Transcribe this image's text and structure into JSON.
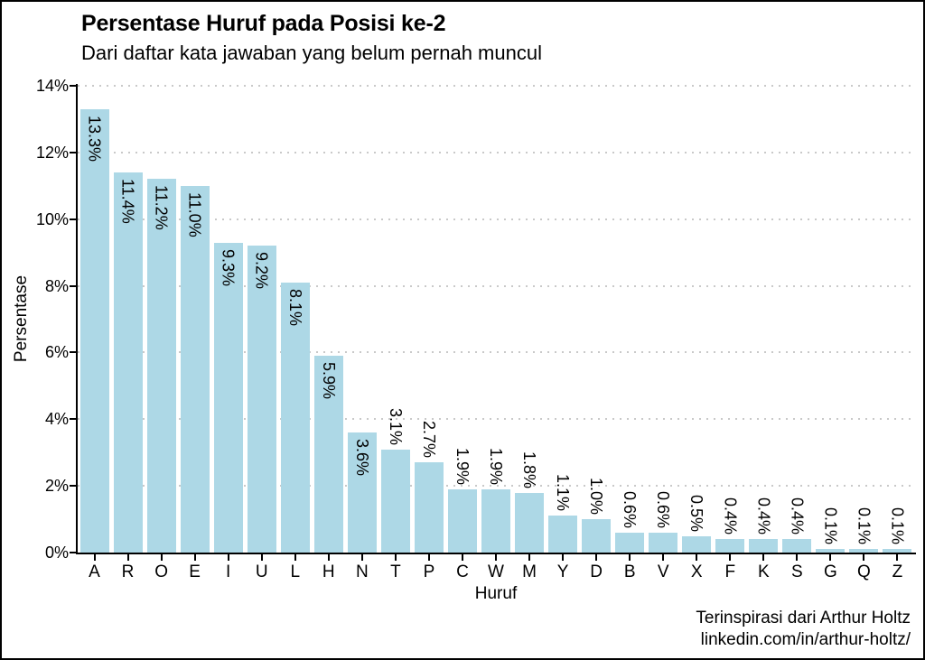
{
  "chart": {
    "title": "Persentase Huruf pada Posisi ke-2",
    "subtitle": "Dari daftar kata jawaban yang belum pernah muncul",
    "xlabel": "Huruf",
    "ylabel": "Persentase",
    "caption_line1": "Terinspirasi dari Arthur Holtz",
    "caption_line2": "linkedin.com/in/arthur-holtz/"
  },
  "chart_data": {
    "type": "bar",
    "title": "Persentase Huruf pada Posisi ke-2",
    "subtitle": "Dari daftar kata jawaban yang belum pernah muncul",
    "xlabel": "Huruf",
    "ylabel": "Persentase",
    "categories": [
      "A",
      "R",
      "O",
      "E",
      "I",
      "U",
      "L",
      "H",
      "N",
      "T",
      "P",
      "C",
      "W",
      "M",
      "Y",
      "D",
      "B",
      "V",
      "X",
      "F",
      "K",
      "S",
      "G",
      "Q",
      "Z"
    ],
    "values": [
      13.3,
      11.4,
      11.2,
      11.0,
      9.3,
      9.2,
      8.1,
      5.9,
      3.6,
      3.1,
      2.7,
      1.9,
      1.9,
      1.8,
      1.1,
      1.0,
      0.6,
      0.6,
      0.5,
      0.4,
      0.4,
      0.4,
      0.1,
      0.1,
      0.1
    ],
    "bar_labels": [
      "13.3%",
      "11.4%",
      "11.2%",
      "11.0%",
      "9.3%",
      "9.2%",
      "8.1%",
      "5.9%",
      "3.6%",
      "3.1%",
      "2.7%",
      "1.9%",
      "1.9%",
      "1.8%",
      "1.1%",
      "1.0%",
      "0.6%",
      "0.6%",
      "0.5%",
      "0.4%",
      "0.4%",
      "0.4%",
      "0.1%",
      "0.1%",
      "0.1%"
    ],
    "ylim": [
      0,
      14
    ],
    "ytick_values": [
      0,
      2,
      4,
      6,
      8,
      10,
      12,
      14
    ],
    "ytick_labels": [
      "0%",
      "2%",
      "4%",
      "6%",
      "8%",
      "10%",
      "12%",
      "14%"
    ],
    "grid": "horizontal-dotted-at-2pct-steps",
    "legend": "none",
    "bar_color": "#ADD8E6",
    "label_rotation_deg": 90,
    "label_inside_threshold": 3.5
  }
}
